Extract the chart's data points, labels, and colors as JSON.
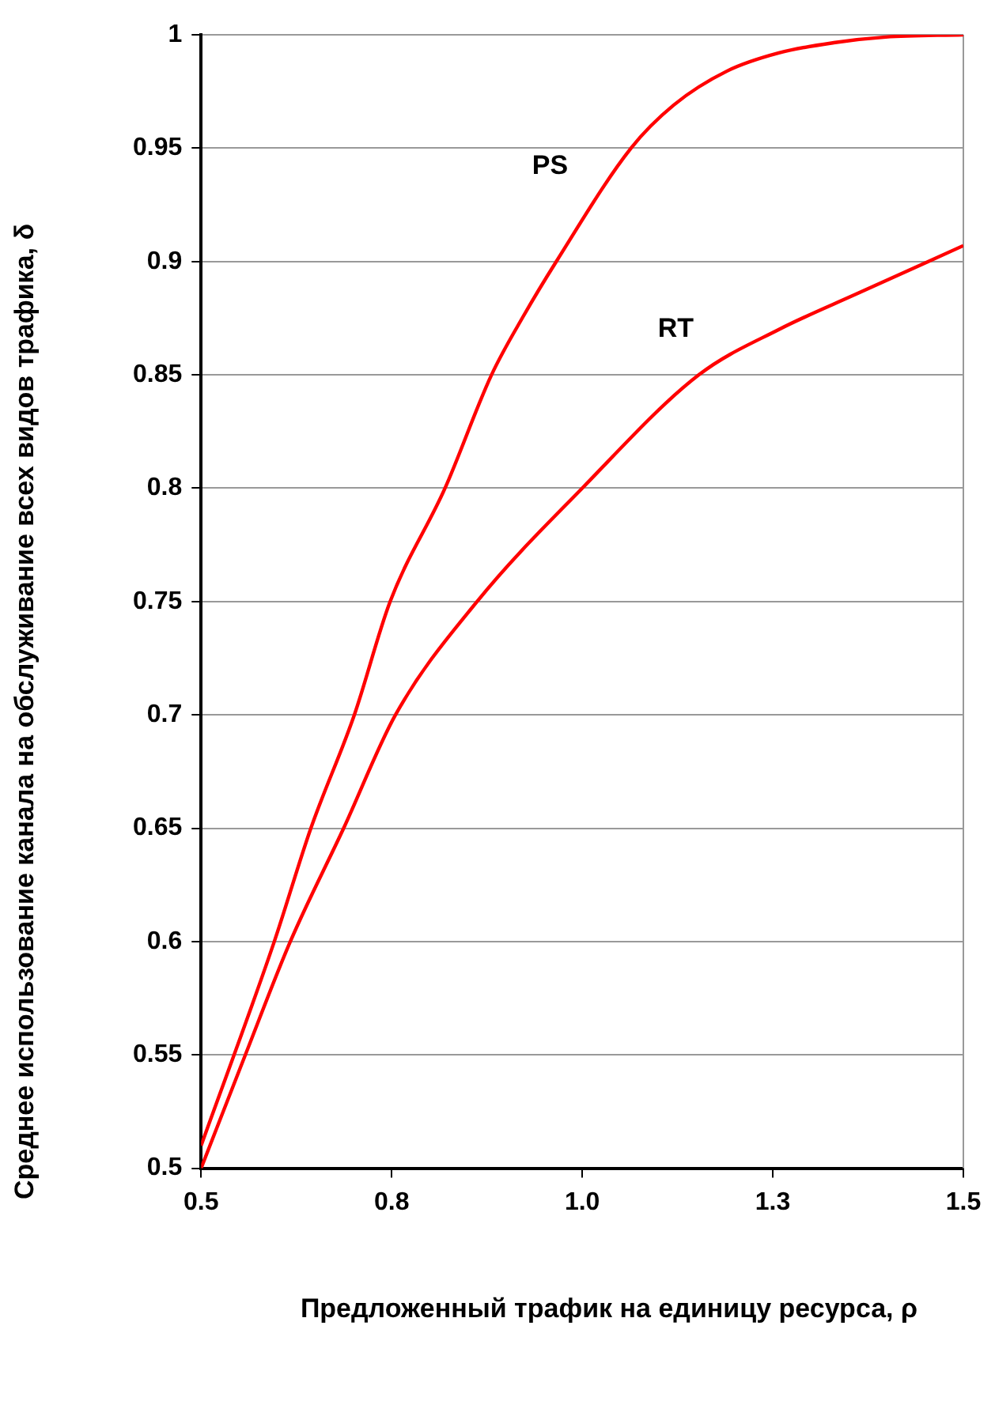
{
  "chart_data": {
    "type": "line",
    "xlabel": "Предложенный трафик на единицу ресурса, ρ",
    "ylabel": "Среднее использование канала на обслуживание всех видов трафика, δ",
    "series": [
      {
        "name": "PS",
        "color": "#ff0000",
        "x": [
          0.5,
          0.596,
          0.644,
          0.701,
          0.748,
          0.82,
          0.881,
          0.923,
          0.966,
          1.064,
          1.12,
          1.19,
          1.258,
          1.33,
          1.398,
          1.5
        ],
        "values": [
          0.51,
          0.6,
          0.65,
          0.7,
          0.75,
          0.8,
          0.85,
          0.876,
          0.9,
          0.95,
          0.969,
          0.984,
          0.992,
          0.9965,
          0.999,
          1.0
        ]
      },
      {
        "name": "RT",
        "color": "#ff0000",
        "x": [
          0.5,
          0.558,
          0.617,
          0.687,
          0.755,
          0.862,
          1.0,
          1.153,
          1.258,
          1.362,
          1.5
        ],
        "values": [
          0.5,
          0.55,
          0.6,
          0.65,
          0.7,
          0.75,
          0.8,
          0.85,
          0.87,
          0.886,
          0.907
        ]
      }
    ],
    "xlim": [
      0.5,
      1.5
    ],
    "xticks": [
      0.5,
      {
        "value": 0.75,
        "label": "0.8"
      },
      {
        "value": 1,
        "label": "1.0"
      },
      {
        "value": 1.25,
        "label": "1.3"
      },
      1.5
    ],
    "ylim": [
      0.5,
      1
    ],
    "yticks": [
      0.5,
      0.55,
      0.6,
      0.65,
      0.7,
      0.75,
      0.8,
      0.85,
      0.9,
      0.95,
      1
    ],
    "grid": "y",
    "legend": false,
    "marker": "none",
    "line_style": "solid"
  }
}
